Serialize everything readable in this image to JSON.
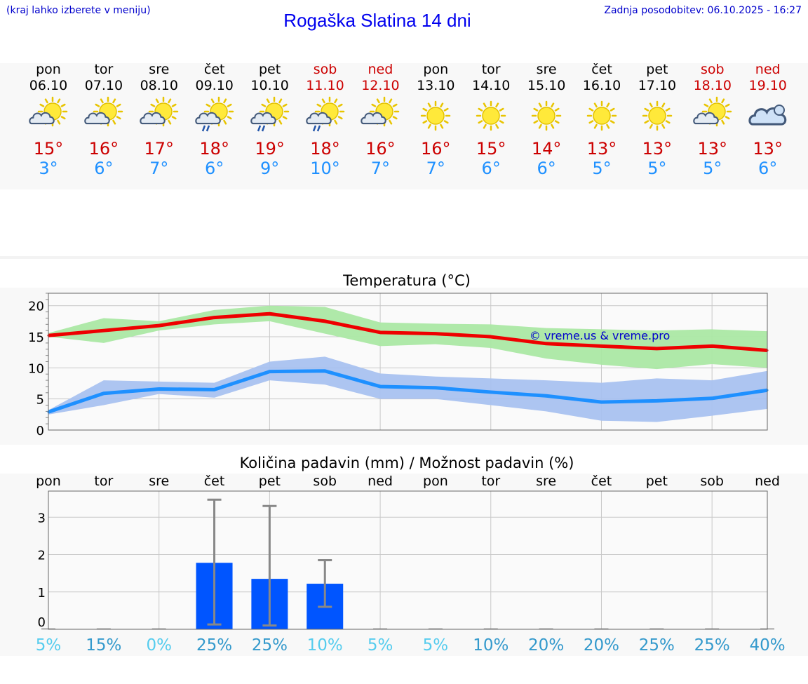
{
  "header": {
    "left_note": "(kraj lahko izberete v meniju)",
    "title": "Rogaška Slatina 14 dni",
    "updated": "Zadnja posodobitev: 06.10.2025 - 16:27"
  },
  "colors": {
    "max": "#ee0000",
    "min": "#1e90ff",
    "weekend": "#cc0000",
    "bar": "#0055ff",
    "max_band": "#abe8a4",
    "min_band": "#a9c2f0"
  },
  "days": [
    {
      "name": "pon",
      "date": "06.10",
      "weekend": false,
      "icon": "partly-cloudy-icon",
      "tmax": "15°",
      "tmin": "3°"
    },
    {
      "name": "tor",
      "date": "07.10",
      "weekend": false,
      "icon": "partly-cloudy-icon",
      "tmax": "16°",
      "tmin": "6°"
    },
    {
      "name": "sre",
      "date": "08.10",
      "weekend": false,
      "icon": "partly-cloudy-icon",
      "tmax": "17°",
      "tmin": "7°"
    },
    {
      "name": "čet",
      "date": "09.10",
      "weekend": false,
      "icon": "sun-cloud-rain-icon",
      "tmax": "18°",
      "tmin": "6°"
    },
    {
      "name": "pet",
      "date": "10.10",
      "weekend": false,
      "icon": "sun-cloud-rain-icon",
      "tmax": "19°",
      "tmin": "9°"
    },
    {
      "name": "sob",
      "date": "11.10",
      "weekend": true,
      "icon": "sun-cloud-rain-icon",
      "tmax": "18°",
      "tmin": "10°"
    },
    {
      "name": "ned",
      "date": "12.10",
      "weekend": true,
      "icon": "partly-cloudy-icon",
      "tmax": "16°",
      "tmin": "7°"
    },
    {
      "name": "pon",
      "date": "13.10",
      "weekend": false,
      "icon": "sun-icon",
      "tmax": "16°",
      "tmin": "7°"
    },
    {
      "name": "tor",
      "date": "14.10",
      "weekend": false,
      "icon": "sun-icon",
      "tmax": "15°",
      "tmin": "6°"
    },
    {
      "name": "sre",
      "date": "15.10",
      "weekend": false,
      "icon": "sun-icon",
      "tmax": "14°",
      "tmin": "6°"
    },
    {
      "name": "čet",
      "date": "16.10",
      "weekend": false,
      "icon": "sun-icon",
      "tmax": "13°",
      "tmin": "5°"
    },
    {
      "name": "pet",
      "date": "17.10",
      "weekend": false,
      "icon": "sun-icon",
      "tmax": "13°",
      "tmin": "5°"
    },
    {
      "name": "sob",
      "date": "18.10",
      "weekend": true,
      "icon": "partly-cloudy-icon",
      "tmax": "13°",
      "tmin": "5°"
    },
    {
      "name": "ned",
      "date": "19.10",
      "weekend": true,
      "icon": "cloudy-icon",
      "tmax": "13°",
      "tmin": "6°"
    }
  ],
  "chart_data": [
    {
      "type": "line",
      "title": "Temperatura (°C)",
      "watermark": "© vreme.us & vreme.pro",
      "ylim": [
        0,
        22
      ],
      "yticks": [
        0,
        5,
        10,
        15,
        20
      ],
      "grid": true,
      "x": [
        "06.10",
        "07.10",
        "08.10",
        "09.10",
        "10.10",
        "11.10",
        "12.10",
        "13.10",
        "14.10",
        "15.10",
        "16.10",
        "17.10",
        "18.10",
        "19.10"
      ],
      "series": [
        {
          "role": "max",
          "values": [
            15.2,
            16.0,
            16.8,
            18.1,
            18.7,
            17.5,
            15.7,
            15.5,
            15.0,
            13.9,
            13.5,
            13.1,
            13.5,
            12.8
          ],
          "band_low": [
            15.0,
            14.0,
            16.0,
            17.0,
            17.5,
            15.5,
            13.5,
            13.8,
            13.2,
            11.5,
            10.5,
            9.8,
            10.6,
            10.0
          ],
          "band_high": [
            15.6,
            18.0,
            17.5,
            19.3,
            20.0,
            19.8,
            17.3,
            17.1,
            17.0,
            16.4,
            16.2,
            16.0,
            16.2,
            15.9
          ]
        },
        {
          "role": "min",
          "values": [
            2.9,
            5.9,
            6.6,
            6.5,
            9.4,
            9.5,
            7.0,
            6.8,
            6.1,
            5.5,
            4.5,
            4.7,
            5.1,
            6.4
          ],
          "band_low": [
            2.5,
            4.0,
            5.8,
            5.2,
            8.0,
            7.3,
            5.0,
            5.0,
            4.0,
            3.0,
            1.5,
            1.3,
            2.3,
            3.4
          ],
          "band_high": [
            3.2,
            8.0,
            7.8,
            7.6,
            11.0,
            11.8,
            9.1,
            8.6,
            8.3,
            8.0,
            7.6,
            8.3,
            8.0,
            9.5
          ]
        }
      ]
    },
    {
      "type": "bar",
      "title": "Količina padavin (mm) / Možnost padavin (%)",
      "ylim": [
        0,
        3.7
      ],
      "yticks": [
        0,
        1,
        2,
        3
      ],
      "grid": true,
      "categories": [
        "pon",
        "tor",
        "sre",
        "čet",
        "pet",
        "sob",
        "ned",
        "pon",
        "tor",
        "sre",
        "čet",
        "pet",
        "sob",
        "ned"
      ],
      "values": [
        0,
        0,
        0,
        1.78,
        1.35,
        1.22,
        0,
        0,
        0,
        0,
        0,
        0,
        0,
        0
      ],
      "error_low": [
        0,
        0,
        0,
        0.13,
        0.1,
        0.6,
        0,
        0,
        0,
        0,
        0,
        0,
        0,
        0
      ],
      "error_high": [
        0,
        0,
        0,
        3.47,
        3.3,
        1.85,
        0,
        0,
        0,
        0,
        0,
        0,
        0,
        0
      ],
      "probability": [
        "5%",
        "15%",
        "0%",
        "25%",
        "25%",
        "10%",
        "5%",
        "5%",
        "10%",
        "20%",
        "20%",
        "25%",
        "25%",
        "40%"
      ],
      "probability_colors": [
        "#55ccee",
        "#3399cc",
        "#55ccee",
        "#3399cc",
        "#3399cc",
        "#55ccee",
        "#55ccee",
        "#55ccee",
        "#3399cc",
        "#3399cc",
        "#3399cc",
        "#3399cc",
        "#3399cc",
        "#3399cc"
      ]
    }
  ]
}
